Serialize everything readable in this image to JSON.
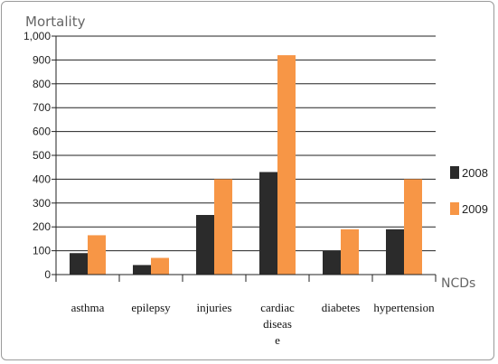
{
  "chart_data": {
    "type": "bar",
    "ylabel": "Mortality",
    "xlabel": "NCDs",
    "categories": [
      "asthma",
      "epilepsy",
      "injuries",
      "cardiac diseas e",
      "diabetes",
      "hypertension"
    ],
    "category_lines": [
      [
        "asthma"
      ],
      [
        "epilepsy"
      ],
      [
        "injuries"
      ],
      [
        "cardiac",
        "diseas",
        "e"
      ],
      [
        "diabetes"
      ],
      [
        "hypertension"
      ]
    ],
    "series": [
      {
        "name": "2008",
        "values": [
          90,
          40,
          250,
          430,
          100,
          190
        ],
        "color": "#2b2b2b"
      },
      {
        "name": "2009",
        "values": [
          165,
          70,
          400,
          920,
          190,
          400
        ],
        "color": "#f79646"
      }
    ],
    "ylim": [
      0,
      1000
    ],
    "yticks": [
      0,
      100,
      200,
      300,
      400,
      500,
      600,
      700,
      800,
      900,
      1000
    ],
    "ytick_labels": [
      "0",
      "100",
      "200",
      "300",
      "400",
      "500",
      "600",
      "700",
      "800",
      "900",
      "1,000"
    ],
    "grid": true,
    "legend_position": "right"
  }
}
